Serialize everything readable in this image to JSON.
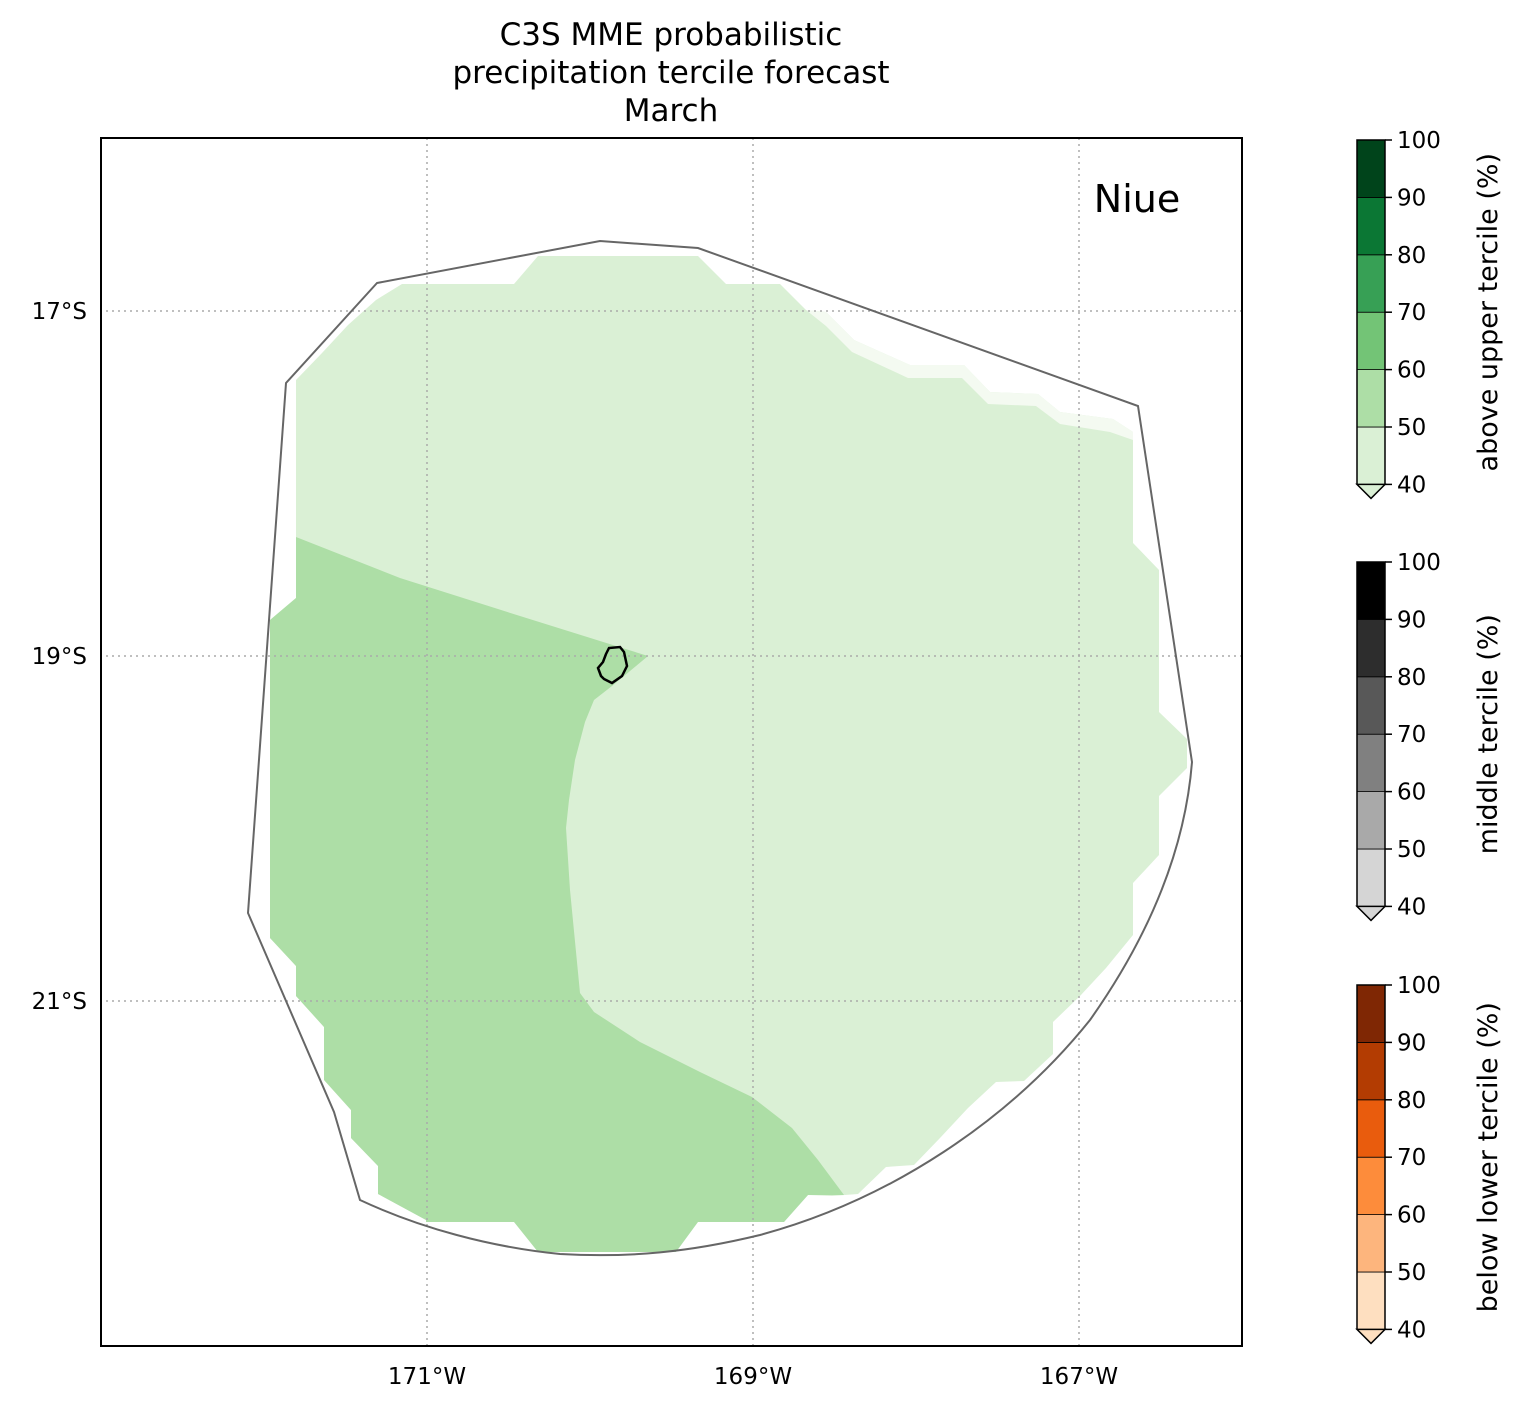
{
  "title": [
    "C3S MME probabilistic",
    "precipitation tercile forecast",
    "March"
  ],
  "region_label": "Niue",
  "map": {
    "lon_ticks": [
      "171°W",
      "169°W",
      "167°W"
    ],
    "lat_ticks": [
      "17°S",
      "19°S",
      "21°S"
    ],
    "lon_range": [
      -173.0,
      -166.0
    ],
    "lat_range": [
      -16.0,
      -23.0
    ],
    "gridlines": true,
    "outline_color": "#666666",
    "island_color": "#000000"
  },
  "forecast_categories": [
    {
      "category": "above upper tercile",
      "probability_range_percent": [
        40,
        50
      ],
      "color": "#daf0d5"
    },
    {
      "category": "above upper tercile",
      "probability_range_percent": [
        50,
        60
      ],
      "color": "#addea6"
    }
  ],
  "colorbars": [
    {
      "label": "above upper tercile (%)",
      "ticks": [
        "100",
        "90",
        "80",
        "70",
        "60",
        "50",
        "40"
      ],
      "colors": [
        "#daf0d5",
        "#addea6",
        "#73c476",
        "#37a055",
        "#0b7734",
        "#00441b"
      ]
    },
    {
      "label": "middle tercile (%)",
      "ticks": [
        "100",
        "90",
        "80",
        "70",
        "60",
        "50",
        "40"
      ],
      "colors": [
        "#d5d5d5",
        "#a9a9a9",
        "#808080",
        "#585858",
        "#2d2d2d",
        "#000000"
      ]
    },
    {
      "label": "below lower tercile (%)",
      "ticks": [
        "100",
        "90",
        "80",
        "70",
        "60",
        "50",
        "40"
      ],
      "colors": [
        "#fedfc0",
        "#fdb57d",
        "#fd8c3b",
        "#e95c0d",
        "#b33c02",
        "#7f2704"
      ]
    }
  ]
}
